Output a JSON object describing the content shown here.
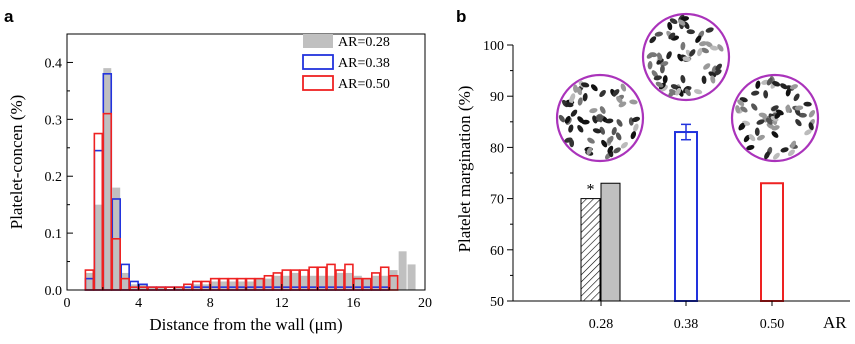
{
  "panels": {
    "a": "a",
    "b": "b"
  },
  "chart_data": [
    {
      "type": "bar",
      "panel": "a",
      "xlabel": "Distance from the wall (μm)",
      "ylabel": "Platelet-concen (%)",
      "xlim": [
        0,
        20
      ],
      "ylim": [
        0,
        0.45
      ],
      "xticks": [
        "0",
        "4",
        "8",
        "12",
        "16",
        "20"
      ],
      "yticks": [
        "0.0",
        "0.1",
        "0.2",
        "0.3",
        "0.4"
      ],
      "legend_position": "top-right",
      "bin_width": 0.5,
      "x": [
        1.25,
        1.75,
        2.25,
        2.75,
        3.25,
        3.75,
        4.25,
        4.75,
        5.25,
        5.75,
        6.25,
        6.75,
        7.25,
        7.75,
        8.25,
        8.75,
        9.25,
        9.75,
        10.25,
        10.75,
        11.25,
        11.75,
        12.25,
        12.75,
        13.25,
        13.75,
        14.25,
        14.75,
        15.25,
        15.75,
        16.25,
        16.75,
        17.25,
        17.75,
        18.25,
        18.75,
        19.25
      ],
      "series": [
        {
          "name": "AR=0.28",
          "style": "filled",
          "color": "#c0c0c0",
          "values": [
            0.03,
            0.15,
            0.39,
            0.18,
            0.03,
            0.01,
            0.01,
            0.005,
            0.005,
            0,
            0.005,
            0.005,
            0.01,
            0.01,
            0.015,
            0.015,
            0.015,
            0.015,
            0.015,
            0.02,
            0.02,
            0.025,
            0.025,
            0.03,
            0.025,
            0.025,
            0.025,
            0.025,
            0.03,
            0.03,
            0.025,
            0.02,
            0.025,
            0.025,
            0.035,
            0.068,
            0.045
          ]
        },
        {
          "name": "AR=0.38",
          "style": "outline",
          "color": "#2233dd",
          "values": [
            0.02,
            0.245,
            0.38,
            0.16,
            0.045,
            0.015,
            0.01,
            0.005,
            0.005,
            0.005,
            0.005,
            0.005,
            0.005,
            0.005,
            0.005,
            0.005,
            0.005,
            0.005,
            0.005,
            0.005,
            0.005,
            0.005,
            0.005,
            0.005,
            0.005,
            0.005,
            0.005,
            0.005,
            0.005,
            0.005,
            0.005,
            0.005,
            0.005,
            0.005,
            0,
            0,
            0
          ]
        },
        {
          "name": "AR=0.50",
          "style": "outline",
          "color": "#ee2222",
          "values": [
            0.035,
            0.275,
            0.31,
            0.09,
            0.02,
            0.005,
            0.005,
            0.005,
            0.005,
            0.005,
            0.005,
            0.01,
            0.015,
            0.015,
            0.02,
            0.02,
            0.02,
            0.02,
            0.02,
            0.02,
            0.025,
            0.03,
            0.035,
            0.035,
            0.035,
            0.04,
            0.04,
            0.045,
            0.035,
            0.045,
            0.02,
            0.02,
            0.03,
            0.04,
            0.025,
            0,
            0
          ]
        }
      ]
    },
    {
      "type": "bar",
      "panel": "b",
      "xlabel": "AR",
      "ylabel": "Platelet margination (%)",
      "ylim": [
        50,
        100
      ],
      "yticks": [
        "50",
        "60",
        "70",
        "80",
        "90",
        "100"
      ],
      "categories": [
        "0.28",
        "0.38",
        "0.50"
      ],
      "bars": [
        {
          "category": "0.28",
          "value": 70,
          "style": "hatched",
          "color": "#000000",
          "annotation": "*"
        },
        {
          "category": "0.28",
          "value": 73,
          "style": "filled",
          "color": "#c0c0c0"
        },
        {
          "category": "0.38",
          "value": 83,
          "error": 1.5,
          "style": "outline",
          "color": "#2233dd"
        },
        {
          "category": "0.50",
          "value": 73,
          "style": "outline",
          "color": "#ee2222"
        }
      ],
      "insets": [
        {
          "category": "0.28",
          "name": "cross-section-inset-0.28",
          "border_color": "#aa33bb",
          "seed": 11
        },
        {
          "category": "0.38",
          "name": "cross-section-inset-0.38",
          "border_color": "#aa33bb",
          "seed": 23
        },
        {
          "category": "0.50",
          "name": "cross-section-inset-0.50",
          "border_color": "#aa33bb",
          "seed": 37
        }
      ]
    }
  ]
}
